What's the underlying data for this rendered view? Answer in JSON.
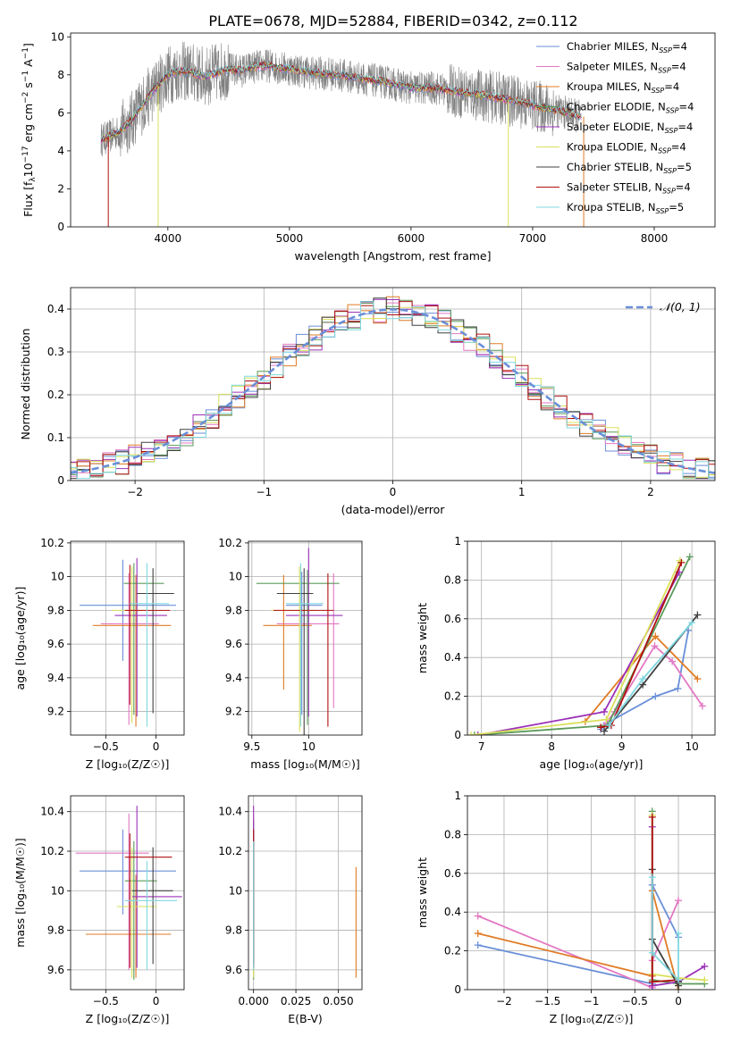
{
  "title": "PLATE=0678, MJD=52884, FIBERID=0342, z=0.112",
  "series": [
    {
      "name": "Chabrier MILES, N",
      "sub": "SSP",
      "tail": "=4",
      "color": "#6a8fd8"
    },
    {
      "name": "Salpeter MILES, N",
      "sub": "SSP",
      "tail": "=4",
      "color": "#e377c2"
    },
    {
      "name": "Kroupa MILES, N",
      "sub": "SSP",
      "tail": "=4",
      "color": "#e07b24"
    },
    {
      "name": "Chabrier ELODIE, N",
      "sub": "SSP",
      "tail": "=4",
      "color": "#5a9a5a"
    },
    {
      "name": "Salpeter ELODIE, N",
      "sub": "SSP",
      "tail": "=4",
      "color": "#9b30b8"
    },
    {
      "name": "Kroupa ELODIE, N",
      "sub": "SSP",
      "tail": "=4",
      "color": "#d9e05a"
    },
    {
      "name": "Chabrier STELIB, N",
      "sub": "SSP",
      "tail": "=5",
      "color": "#404040"
    },
    {
      "name": "Salpeter STELIB, N",
      "sub": "SSP",
      "tail": "=4",
      "color": "#b01010"
    },
    {
      "name": "Kroupa STELIB, N",
      "sub": "SSP",
      "tail": "=5",
      "color": "#7fd7e0"
    }
  ],
  "chart_data": [
    {
      "type": "line",
      "id": "spectrum",
      "xlabel": "wavelength [Angstrom, rest frame]",
      "ylabel": "Flux [f",
      "ylabel_parts": [
        "Flux [f",
        "λ",
        "10",
        "−17",
        " erg cm",
        "−2",
        " s",
        "−1",
        " A",
        "−1",
        "]"
      ],
      "xlim": [
        3200,
        8500
      ],
      "ylim": [
        0,
        10.2
      ],
      "xticks": [
        4000,
        5000,
        6000,
        7000,
        8000
      ],
      "yticks": [
        0,
        2,
        4,
        6,
        8,
        10
      ],
      "grid": false,
      "legend": "top-right",
      "continuum": {
        "x": [
          3450,
          3500,
          3600,
          3700,
          3800,
          3900,
          4000,
          4100,
          4200,
          4300,
          4400,
          4500,
          4600,
          4700,
          4800,
          5000,
          5200,
          5400,
          5600,
          5800,
          6000,
          6200,
          6400,
          6600,
          6800,
          7000,
          7200,
          7400
        ],
        "y": [
          4.6,
          4.7,
          5.0,
          5.6,
          6.5,
          7.3,
          8.0,
          8.2,
          8.1,
          7.9,
          8.1,
          8.3,
          8.2,
          8.4,
          8.5,
          8.3,
          8.1,
          8.0,
          7.8,
          7.6,
          7.3,
          7.3,
          7.1,
          6.9,
          6.7,
          6.4,
          6.1,
          5.8
        ]
      },
      "dips": [
        {
          "x": 3510,
          "y": 0.0
        },
        {
          "x": 3920,
          "y": 0.0
        },
        {
          "x": 6800,
          "y": 0.0
        },
        {
          "x": 7420,
          "y": 0.0
        }
      ]
    },
    {
      "type": "area",
      "id": "residuals",
      "xlabel": "(data-model)/error",
      "ylabel": "Normed distribution",
      "xlim": [
        -2.5,
        2.5
      ],
      "ylim": [
        0,
        0.45
      ],
      "xticks": [
        -2,
        -1,
        0,
        1,
        2
      ],
      "yticks": [
        0.0,
        0.1,
        0.2,
        0.3,
        0.4
      ],
      "grid": true,
      "legend": "top-right",
      "reference": {
        "name": "𝒩(0, 1)",
        "mean": 0,
        "sigma": 1,
        "color": "#6a8fd8"
      },
      "bin_width": 0.1
    },
    {
      "type": "scatter",
      "id": "age-vs-z",
      "xlabel": "Z [log₁₀(Z/Z☉)]",
      "ylabel": "age  [log₁₀(age/yr)]",
      "xlim": [
        -0.85,
        0.28
      ],
      "ylim": [
        9.06,
        10.21
      ],
      "xticks": [
        -0.5,
        0.0
      ],
      "yticks": [
        9.2,
        9.4,
        9.6,
        9.8,
        10.0,
        10.2
      ],
      "grid": true,
      "points": [
        {
          "x": -0.33,
          "y": 9.83,
          "xerr": [
            0.43,
            0.53
          ],
          "yerr": [
            0.33,
            0.27
          ],
          "s": 0
        },
        {
          "x": -0.27,
          "y": 9.72,
          "xerr": [
            0.28,
            0.3
          ],
          "yerr": [
            0.6,
            0.3
          ],
          "s": 1
        },
        {
          "x": -0.2,
          "y": 9.71,
          "xerr": [
            0.43,
            0.35
          ],
          "yerr": [
            0.6,
            0.3
          ],
          "s": 2
        },
        {
          "x": -0.22,
          "y": 9.96,
          "xerr": [
            0.1,
            0.3
          ],
          "yerr": [
            0.78,
            0.12
          ],
          "s": 3
        },
        {
          "x": -0.19,
          "y": 9.77,
          "xerr": [
            0.22,
            0.3
          ],
          "yerr": [
            0.6,
            0.34
          ],
          "s": 4
        },
        {
          "x": -0.24,
          "y": 9.8,
          "xerr": [
            0.2,
            0.15
          ],
          "yerr": [
            0.67,
            0.26
          ],
          "s": 5
        },
        {
          "x": -0.03,
          "y": 9.9,
          "xerr": [
            0.16,
            0.21
          ],
          "yerr": [
            0.71,
            0.15
          ],
          "s": 6
        },
        {
          "x": -0.26,
          "y": 9.8,
          "xerr": [
            0.05,
            0.4
          ],
          "yerr": [
            0.56,
            0.27
          ],
          "s": 7
        },
        {
          "x": -0.09,
          "y": 9.84,
          "xerr": [
            0.17,
            0.22
          ],
          "yerr": [
            0.73,
            0.24
          ],
          "s": 8
        }
      ]
    },
    {
      "type": "scatter",
      "id": "age-vs-mass",
      "xlabel": "mass [log₁₀(M/M☉)]",
      "ylabel": "",
      "xlim": [
        9.47,
        10.47
      ],
      "ylim": [
        9.06,
        10.21
      ],
      "xticks": [
        9.5,
        10.0
      ],
      "yticks": [
        9.2,
        9.4,
        9.6,
        9.8,
        10.0,
        10.2
      ],
      "grid": true,
      "points": [
        {
          "x": 9.94,
          "y": 9.83,
          "xerr": [
            0.14,
            0.18
          ],
          "yerr": [
            0.65,
            0.2
          ],
          "s": 0
        },
        {
          "x": 10.22,
          "y": 9.72,
          "xerr": [
            0.5,
            0.05
          ],
          "yerr": [
            0.5,
            0.3
          ],
          "s": 1
        },
        {
          "x": 9.78,
          "y": 9.71,
          "xerr": [
            0.18,
            0.25
          ],
          "yerr": [
            0.38,
            0.3
          ],
          "s": 2
        },
        {
          "x": 9.99,
          "y": 9.96,
          "xerr": [
            0.45,
            0.28
          ],
          "yerr": [
            0.84,
            0.08
          ],
          "s": 3
        },
        {
          "x": 10.0,
          "y": 9.77,
          "xerr": [
            0.2,
            0.3
          ],
          "yerr": [
            0.6,
            0.4
          ],
          "s": 4
        },
        {
          "x": 9.92,
          "y": 9.8,
          "xerr": [
            0.25,
            0.15
          ],
          "yerr": [
            0.72,
            0.26
          ],
          "s": 5
        },
        {
          "x": 9.96,
          "y": 9.9,
          "xerr": [
            0.24,
            0.08
          ],
          "yerr": [
            0.85,
            0.15
          ],
          "s": 6
        },
        {
          "x": 10.17,
          "y": 9.8,
          "xerr": [
            0.48,
            0.05
          ],
          "yerr": [
            0.69,
            0.22
          ],
          "s": 7
        },
        {
          "x": 9.93,
          "y": 9.84,
          "xerr": [
            0.13,
            0.2
          ],
          "yerr": [
            0.73,
            0.24
          ],
          "s": 8
        }
      ]
    },
    {
      "type": "line",
      "id": "weight-vs-age",
      "xlabel": "age  [log₁₀(age/yr)]",
      "ylabel": "mass weight",
      "xlim": [
        6.8,
        10.33
      ],
      "ylim": [
        0,
        1.0
      ],
      "xticks": [
        7,
        8,
        9,
        10
      ],
      "yticks": [
        0.0,
        0.2,
        0.4,
        0.6,
        0.8,
        1.0
      ],
      "grid": true,
      "lines": [
        {
          "s": 0,
          "x": [
            8.7,
            8.78,
            9.48,
            9.8,
            9.95
          ],
          "y": [
            0.03,
            0.06,
            0.2,
            0.24,
            0.54
          ]
        },
        {
          "s": 1,
          "x": [
            8.75,
            8.9,
            9.47,
            9.72,
            10.15
          ],
          "y": [
            0.05,
            0.12,
            0.46,
            0.38,
            0.15
          ]
        },
        {
          "s": 2,
          "x": [
            8.48,
            9.48,
            10.08
          ],
          "y": [
            0.07,
            0.51,
            0.29
          ]
        },
        {
          "s": 3,
          "x": [
            6.9,
            8.8,
            9.97
          ],
          "y": [
            0.0,
            0.05,
            0.92
          ]
        },
        {
          "s": 4,
          "x": [
            6.95,
            8.75,
            9.82
          ],
          "y": [
            0.0,
            0.12,
            0.84
          ]
        },
        {
          "s": 5,
          "x": [
            6.85,
            8.78,
            9.83
          ],
          "y": [
            0.0,
            0.08,
            0.9
          ]
        },
        {
          "s": 6,
          "x": [
            8.75,
            9.3,
            10.08
          ],
          "y": [
            0.02,
            0.26,
            0.62
          ]
        },
        {
          "s": 7,
          "x": [
            8.7,
            8.85,
            9.85
          ],
          "y": [
            0.04,
            0.05,
            0.89
          ]
        },
        {
          "s": 8,
          "x": [
            8.82,
            9.3,
            10.0
          ],
          "y": [
            0.05,
            0.29,
            0.58
          ]
        }
      ]
    },
    {
      "type": "scatter",
      "id": "mass-vs-z",
      "xlabel": "Z [log₁₀(Z/Z☉)]",
      "ylabel": "mass [log₁₀(M/M☉)]",
      "xlim": [
        -0.85,
        0.28
      ],
      "ylim": [
        9.5,
        10.48
      ],
      "xticks": [
        -0.5,
        0.0
      ],
      "yticks": [
        9.6,
        9.8,
        10.0,
        10.2,
        10.4
      ],
      "grid": true,
      "points": [
        {
          "x": -0.33,
          "y": 10.1,
          "xerr": [
            0.43,
            0.53
          ],
          "yerr": [
            0.22,
            0.21
          ],
          "s": 0
        },
        {
          "x": -0.27,
          "y": 10.19,
          "xerr": [
            0.53,
            0.2
          ],
          "yerr": [
            0.59,
            0.2
          ],
          "s": 1
        },
        {
          "x": -0.2,
          "y": 9.78,
          "xerr": [
            0.5,
            0.35
          ],
          "yerr": [
            0.22,
            0.3
          ],
          "s": 2
        },
        {
          "x": -0.22,
          "y": 10.05,
          "xerr": [
            0.09,
            0.23
          ],
          "yerr": [
            0.5,
            0.2
          ],
          "s": 3
        },
        {
          "x": -0.19,
          "y": 9.97,
          "xerr": [
            0.05,
            0.45
          ],
          "yerr": [
            0.36,
            0.46
          ],
          "s": 4
        },
        {
          "x": -0.24,
          "y": 9.92,
          "xerr": [
            0.15,
            0.25
          ],
          "yerr": [
            0.36,
            0.3
          ],
          "s": 5
        },
        {
          "x": -0.03,
          "y": 10.0,
          "xerr": [
            0.21,
            0.2
          ],
          "yerr": [
            0.37,
            0.22
          ],
          "s": 6
        },
        {
          "x": -0.26,
          "y": 10.17,
          "xerr": [
            0.05,
            0.42
          ],
          "yerr": [
            0.56,
            0.12
          ],
          "s": 7
        },
        {
          "x": -0.09,
          "y": 9.95,
          "xerr": [
            0.22,
            0.3
          ],
          "yerr": [
            0.35,
            0.2
          ],
          "s": 8
        }
      ]
    },
    {
      "type": "scatter",
      "id": "mass-vs-ebv",
      "xlabel": "E(B-V)",
      "ylabel": "",
      "xlim": [
        -0.003,
        0.064
      ],
      "ylim": [
        9.5,
        10.48
      ],
      "xticks": [
        0.0,
        0.025,
        0.05
      ],
      "xtick_labels": [
        "0.000",
        "0.025",
        "0.050"
      ],
      "yticks": [
        9.6,
        9.8,
        10.0,
        10.2,
        10.4
      ],
      "grid": true,
      "points": [
        {
          "x": 0.0,
          "y": 10.1,
          "yerr": [
            0.3,
            0.2
          ],
          "s": 0
        },
        {
          "x": 0.0,
          "y": 10.15,
          "yerr": [
            0.5,
            0.22
          ],
          "s": 1
        },
        {
          "x": 0.0605,
          "y": 9.78,
          "yerr": [
            0.22,
            0.34
          ],
          "s": 2
        },
        {
          "x": 0.0,
          "y": 10.05,
          "yerr": [
            0.5,
            0.3
          ],
          "s": 3
        },
        {
          "x": 0.0,
          "y": 9.97,
          "yerr": [
            0.36,
            0.46
          ],
          "s": 4
        },
        {
          "x": 0.0,
          "y": 9.92,
          "yerr": [
            0.36,
            0.3
          ],
          "s": 5
        },
        {
          "x": 0.0,
          "y": 10.0,
          "yerr": [
            0.37,
            0.25
          ],
          "s": 6
        },
        {
          "x": 0.0,
          "y": 10.17,
          "yerr": [
            0.56,
            0.14
          ],
          "s": 7
        },
        {
          "x": 0.0,
          "y": 9.95,
          "yerr": [
            0.35,
            0.3
          ],
          "s": 8
        }
      ]
    },
    {
      "type": "line",
      "id": "weight-vs-z",
      "xlabel": "Z [log₁₀(Z/Z☉)]",
      "ylabel": "mass weight",
      "xlim": [
        -2.42,
        0.42
      ],
      "ylim": [
        0,
        1.0
      ],
      "xticks": [
        -2.0,
        -1.5,
        -1.0,
        -0.5,
        0.0
      ],
      "yticks": [
        0.0,
        0.2,
        0.4,
        0.6,
        0.8,
        1.0
      ],
      "grid": true,
      "lines": [
        {
          "s": 0,
          "x": [
            -2.3,
            -0.3,
            -0.3,
            0.0
          ],
          "y": [
            0.23,
            0.03,
            0.54,
            0.27
          ]
        },
        {
          "s": 1,
          "x": [
            -2.3,
            -0.3,
            -0.3,
            0.0
          ],
          "y": [
            0.38,
            0.01,
            0.15,
            0.46
          ]
        },
        {
          "s": 2,
          "x": [
            -2.3,
            -0.3,
            -0.3,
            0.0
          ],
          "y": [
            0.29,
            0.07,
            0.51,
            0.0
          ]
        },
        {
          "s": 3,
          "x": [
            -0.3,
            -0.3,
            0.0,
            0.3
          ],
          "y": [
            0.92,
            0.05,
            0.03,
            0.03
          ]
        },
        {
          "s": 4,
          "x": [
            -0.3,
            -0.3,
            0.0,
            0.3
          ],
          "y": [
            0.84,
            0.02,
            0.04,
            0.12
          ]
        },
        {
          "s": 5,
          "x": [
            -0.3,
            -0.3,
            0.0,
            0.3
          ],
          "y": [
            0.9,
            0.08,
            0.06,
            0.05
          ]
        },
        {
          "s": 6,
          "x": [
            -0.3,
            -0.3,
            0.0,
            0.0
          ],
          "y": [
            0.62,
            0.26,
            0.02,
            0.04
          ]
        },
        {
          "s": 7,
          "x": [
            -0.3,
            -0.3,
            0.0
          ],
          "y": [
            0.89,
            0.04,
            0.05
          ]
        },
        {
          "s": 8,
          "x": [
            -0.3,
            -0.3,
            0.0,
            0.0
          ],
          "y": [
            0.58,
            0.19,
            0.05,
            0.29
          ]
        }
      ]
    }
  ]
}
